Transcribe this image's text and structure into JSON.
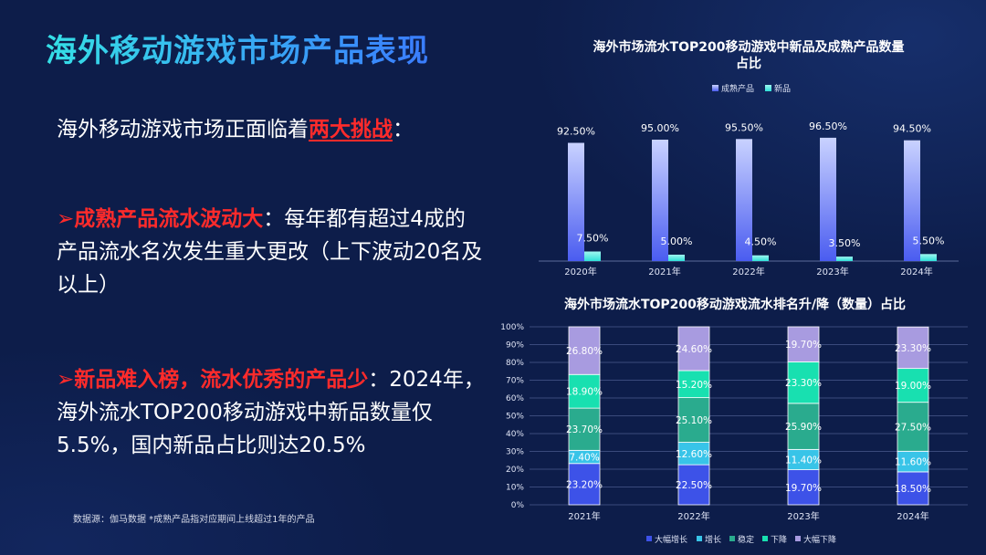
{
  "page": {
    "title": "海外移动游戏市场产品表现",
    "intro_prefix": "海外移动游戏市场正面临着",
    "intro_highlight": "两大挑战",
    "intro_suffix": "：",
    "point1_marker": "➢",
    "point1_bold": "成熟产品流水波动大",
    "point1_text": "：每年都有超过4成的产品流水名次发生重大更改（上下波动20名及以上）",
    "point2_marker": "➢",
    "point2_bold": "新品难入榜，流水优秀的产品少",
    "point2_text": "：2024年，海外流水TOP200移动游戏中新品数量仅5.5%，国内新品占比则达20.5%",
    "source": "数据源：伽马数据 *成熟产品指对应期间上线超过1年的产品"
  },
  "colors": {
    "background": "#0d1d4a",
    "mature": "#4a5cf0",
    "new": "#2ee0d8",
    "big_rise": "#3d52e8",
    "rise": "#38c4e8",
    "stable": "#2aab8e",
    "fall": "#18e0b0",
    "big_fall": "#a89be0",
    "highlight": "#ff2b2b"
  },
  "chart_data": [
    {
      "type": "bar",
      "title": "海外市场流水TOP200移动游戏中新品及成熟产品数量占比",
      "categories": [
        "2020年",
        "2021年",
        "2022年",
        "2023年",
        "2024年"
      ],
      "series": [
        {
          "name": "成熟产品",
          "values": [
            92.5,
            95.0,
            95.5,
            96.5,
            94.5
          ],
          "labels": [
            "92.50%",
            "95.00%",
            "95.50%",
            "96.50%",
            "94.50%"
          ]
        },
        {
          "name": "新品",
          "values": [
            7.5,
            5.0,
            4.5,
            3.5,
            5.5
          ],
          "labels": [
            "7.50%",
            "5.00%",
            "4.50%",
            "3.50%",
            "5.50%"
          ]
        }
      ],
      "ylim": [
        0,
        100
      ],
      "legend": "top"
    },
    {
      "type": "bar",
      "stacked": true,
      "title": "海外市场流水TOP200移动游戏流水排名升/降（数量）占比",
      "categories": [
        "2021年",
        "2022年",
        "2023年",
        "2024年"
      ],
      "series": [
        {
          "name": "大幅增长",
          "values": [
            23.2,
            22.5,
            19.7,
            18.5
          ],
          "labels": [
            "23.20%",
            "22.50%",
            "19.70%",
            "18.50%"
          ]
        },
        {
          "name": "增长",
          "values": [
            7.4,
            12.6,
            11.4,
            11.6
          ],
          "labels": [
            "7.40%",
            "12.60%",
            "11.40%",
            "11.60%"
          ]
        },
        {
          "name": "稳定",
          "values": [
            23.7,
            25.1,
            25.9,
            27.5
          ],
          "labels": [
            "23.70%",
            "25.10%",
            "25.90%",
            "27.50%"
          ]
        },
        {
          "name": "下降",
          "values": [
            18.9,
            15.2,
            23.3,
            19.0
          ],
          "labels": [
            "18.90%",
            "15.20%",
            "23.30%",
            "19.00%"
          ]
        },
        {
          "name": "大幅下降",
          "values": [
            26.8,
            24.6,
            19.7,
            23.3
          ],
          "labels": [
            "26.80%",
            "24.60%",
            "19.70%",
            "23.30%"
          ]
        }
      ],
      "yticks": [
        "0%",
        "10%",
        "20%",
        "30%",
        "40%",
        "50%",
        "60%",
        "70%",
        "80%",
        "90%",
        "100%"
      ],
      "ylim": [
        0,
        100
      ],
      "grid": true,
      "legend": "bottom"
    }
  ]
}
